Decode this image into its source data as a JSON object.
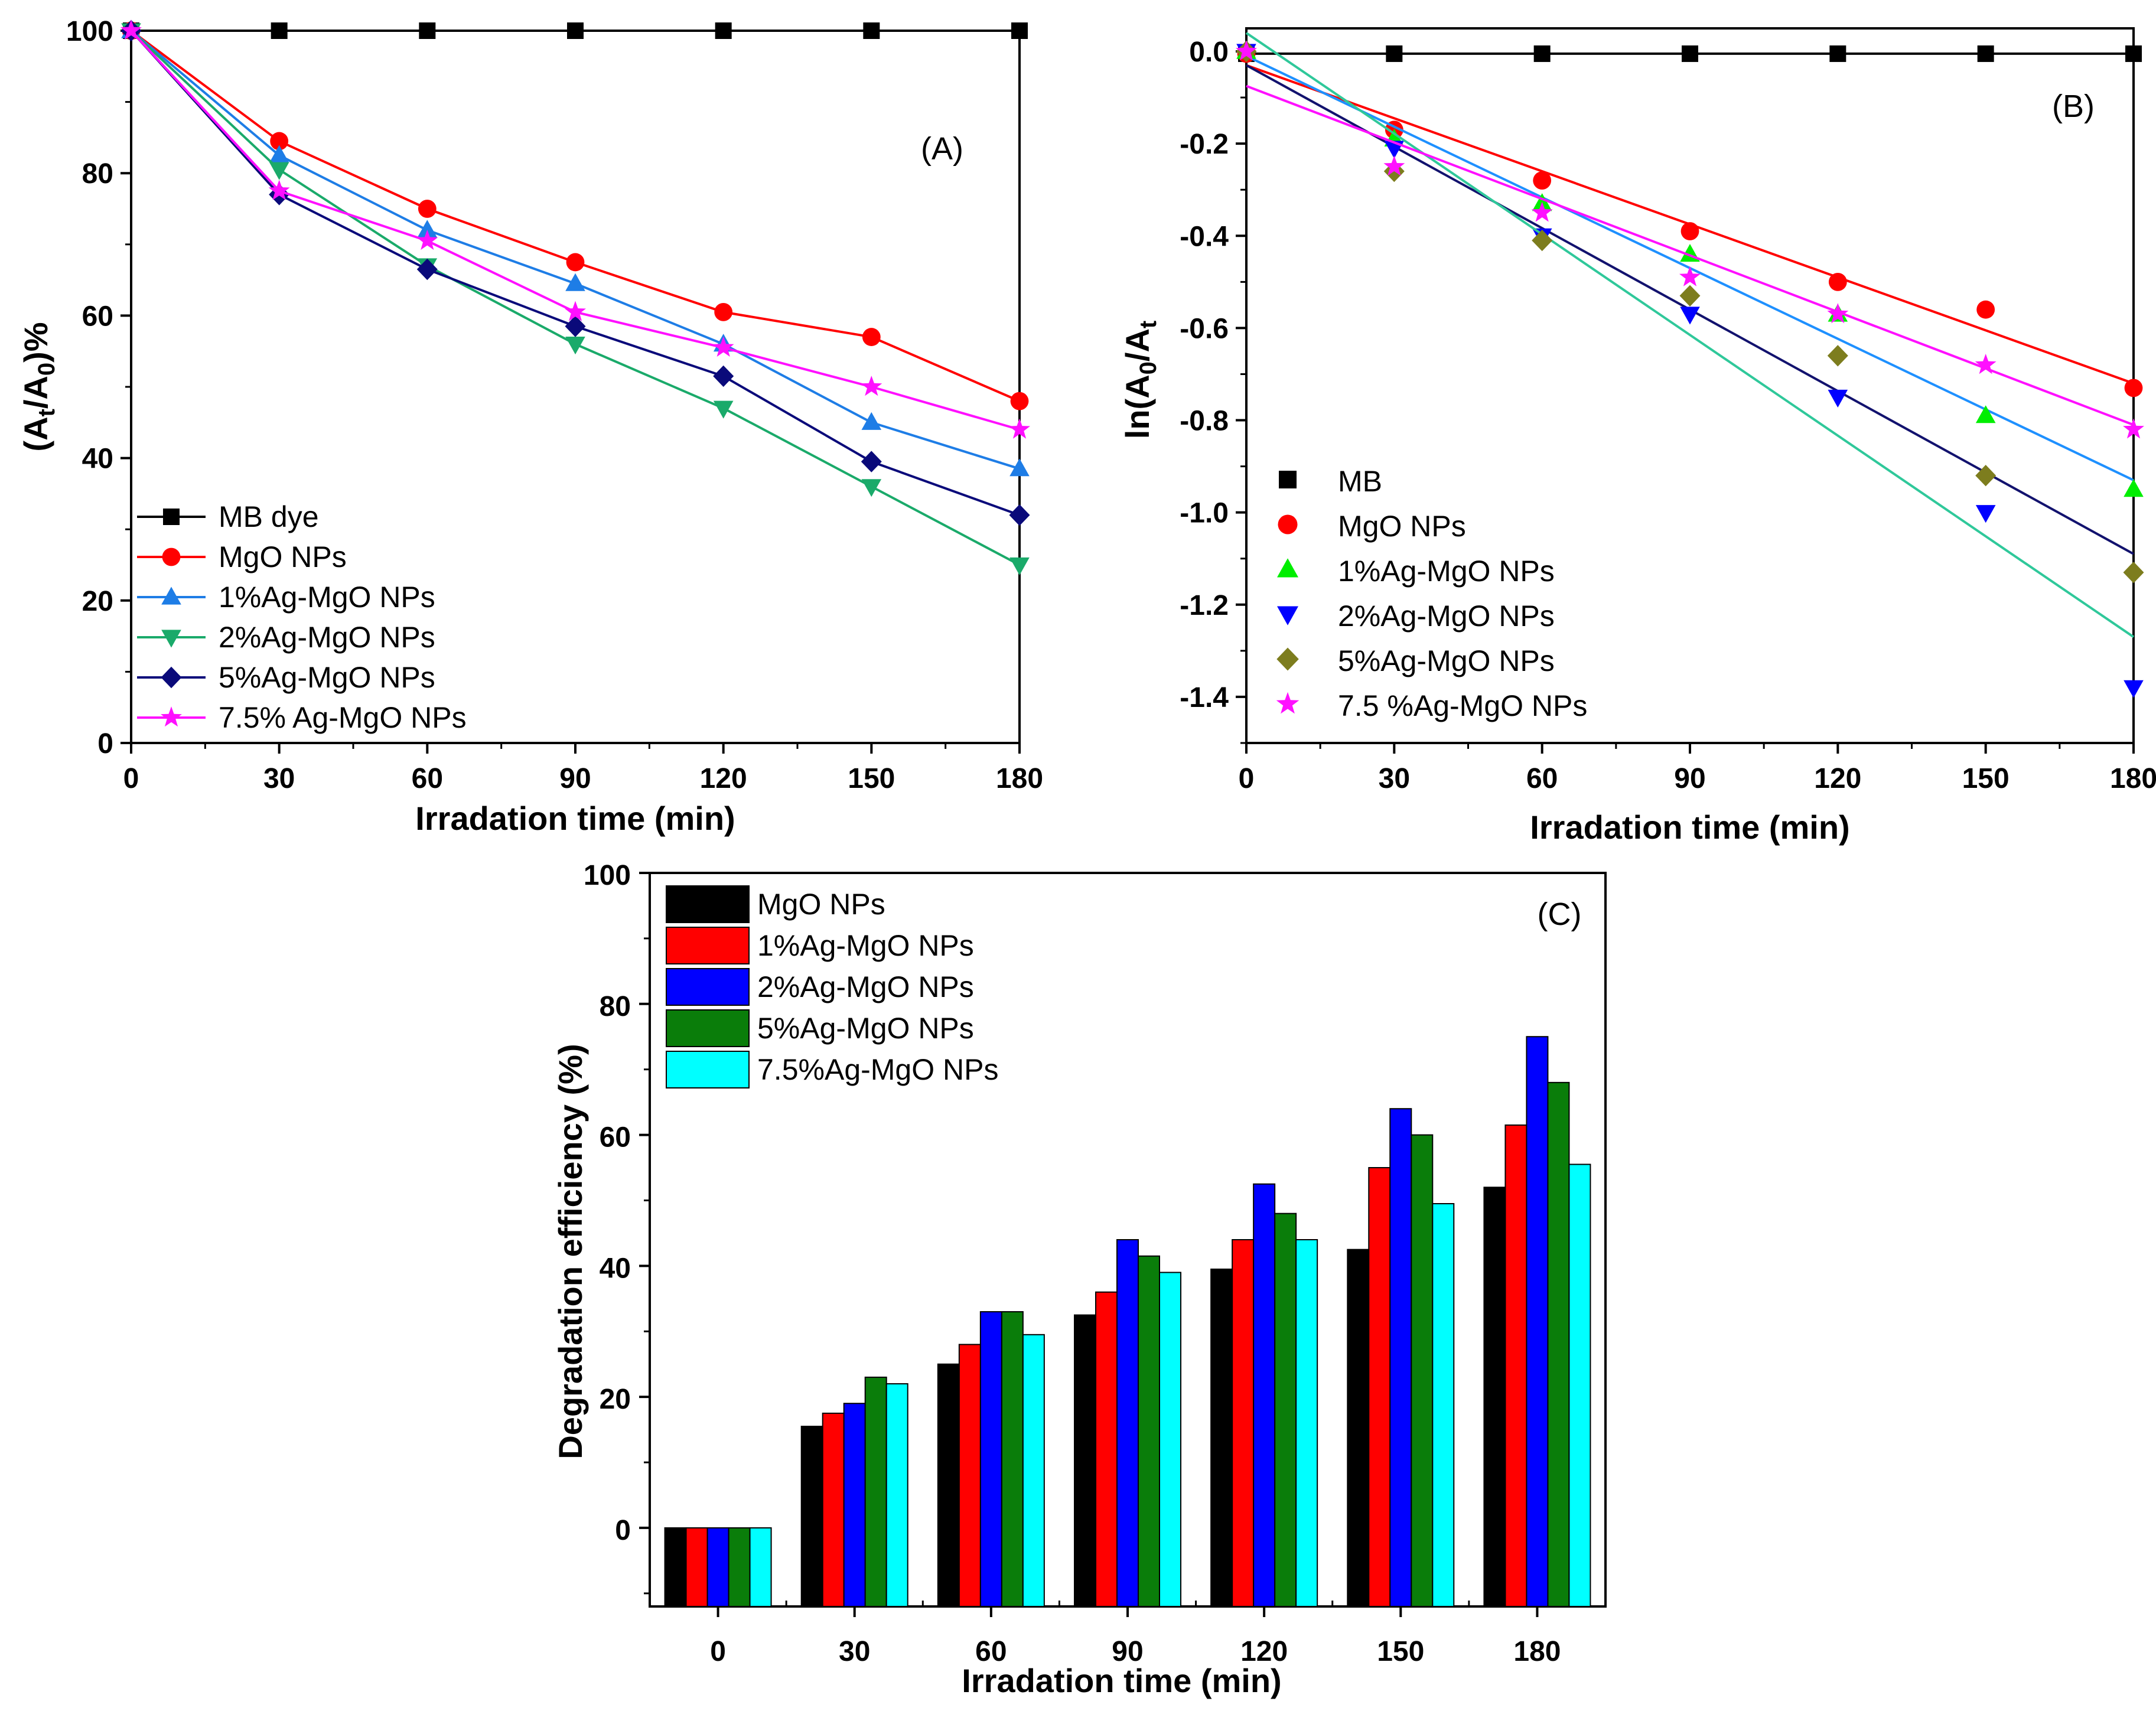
{
  "chart_data": [
    {
      "id": "A",
      "type": "line",
      "title": "(A)",
      "xlabel": "Irradation time (min)",
      "ylabel_parts": [
        "(A",
        "t",
        "/A",
        "0",
        ")%"
      ],
      "x": [
        0,
        30,
        60,
        90,
        120,
        150,
        180
      ],
      "xlim": [
        0,
        180
      ],
      "ylim": [
        0,
        100
      ],
      "xticks": [
        0,
        30,
        60,
        90,
        120,
        150,
        180
      ],
      "yticks": [
        0,
        20,
        40,
        60,
        80,
        100
      ],
      "legend_position": "bottom-left",
      "series": [
        {
          "name": "MB dye",
          "color": "#000000",
          "marker": "square",
          "values": [
            100,
            100,
            100,
            100,
            100,
            100,
            100
          ]
        },
        {
          "name": "MgO NPs",
          "color": "#ff0000",
          "marker": "circle",
          "values": [
            100,
            84.5,
            75,
            67.5,
            60.5,
            57,
            48
          ]
        },
        {
          "name": "1%Ag-MgO NPs",
          "color": "#1e7de6",
          "marker": "triangle-up",
          "values": [
            100,
            82.5,
            72,
            64.5,
            56,
            45,
            38.5
          ]
        },
        {
          "name": "2%Ag-MgO NPs",
          "color": "#1aaa6a",
          "marker": "triangle-down",
          "values": [
            100,
            80.5,
            67,
            56,
            47,
            36,
            25
          ]
        },
        {
          "name": "5%Ag-MgO NPs",
          "color": "#0a0a7a",
          "marker": "diamond",
          "values": [
            100,
            77,
            66.5,
            58.5,
            51.5,
            39.5,
            32
          ]
        },
        {
          "name": "7.5% Ag-MgO NPs",
          "color": "#ff10ff",
          "marker": "star",
          "values": [
            100,
            77.5,
            70.5,
            60.5,
            55.5,
            50,
            44
          ]
        }
      ]
    },
    {
      "id": "B",
      "type": "scatter",
      "title": "(B)",
      "xlabel": "Irradation time (min)",
      "ylabel_parts": [
        "ln(A",
        "0",
        "/A",
        "t"
      ],
      "x": [
        0,
        30,
        60,
        90,
        120,
        150,
        180
      ],
      "xlim": [
        0,
        180
      ],
      "ylim": [
        -1.5,
        0.05
      ],
      "xticks": [
        0,
        30,
        60,
        90,
        120,
        150,
        180
      ],
      "yticks": [
        0.0,
        -0.2,
        -0.4,
        -0.6,
        -0.8,
        -1.0,
        -1.2,
        -1.4
      ],
      "ytick_labels": [
        "0.0",
        "-0.2",
        "-0.4",
        "-0.6",
        "-0.8",
        "-1.0",
        "-1.2",
        "-1.4"
      ],
      "legend_position": "bottom-left",
      "series": [
        {
          "name": "MB",
          "color": "#000000",
          "marker": "square",
          "values": [
            -0.005,
            -0.005,
            -0.005,
            -0.005,
            -0.005,
            -0.005,
            -0.005
          ],
          "fit": [
            -0.005,
            -0.005
          ]
        },
        {
          "name": "MgO NPs",
          "color": "#ff0000",
          "marker": "circle",
          "values": [
            -0.005,
            -0.17,
            -0.28,
            -0.39,
            -0.5,
            -0.56,
            -0.73
          ],
          "fit": [
            -0.03,
            -0.72
          ]
        },
        {
          "name": "1%Ag-MgO NPs",
          "color": "#00ee00",
          "marker": "triangle-up",
          "values": [
            0.0,
            -0.19,
            -0.33,
            -0.44,
            -0.57,
            -0.79,
            -0.95
          ],
          "fit": [
            -0.01,
            -0.93
          ],
          "fit_color": "#1e90ff"
        },
        {
          "name": "2%Ag-MgO NPs",
          "color": "#0000ff",
          "marker": "triangle-down",
          "values": [
            0.0,
            -0.21,
            -0.4,
            -0.57,
            -0.75,
            -1.0,
            -1.38
          ],
          "fit": [
            -0.03,
            -1.09
          ],
          "fit_color": "#12126e"
        },
        {
          "name": "5%Ag-MgO NPs",
          "color": "#7d7d1e",
          "marker": "diamond",
          "values": [
            0.0,
            -0.26,
            -0.41,
            -0.53,
            -0.66,
            -0.92,
            -1.13
          ],
          "fit": [
            0.04,
            -1.27
          ],
          "fit_color": "#2fc89a"
        },
        {
          "name": "7.5 %Ag-MgO NPs",
          "color": "#ff10ff",
          "marker": "star",
          "values": [
            0.0,
            -0.25,
            -0.35,
            -0.49,
            -0.57,
            -0.68,
            -0.82
          ],
          "fit": [
            -0.075,
            -0.81
          ]
        }
      ]
    },
    {
      "id": "C",
      "type": "bar",
      "title": "(C)",
      "xlabel": "Irradation time (min)",
      "ylabel": "Degradation efficiency (%)",
      "categories": [
        "0",
        "30",
        "60",
        "90",
        "120",
        "150",
        "180"
      ],
      "ylim": [
        -12,
        100
      ],
      "yticks": [
        0,
        20,
        40,
        60,
        80,
        100
      ],
      "legend_position": "top-left",
      "series": [
        {
          "name": "MgO NPs",
          "color": "#000000",
          "values": [
            0,
            15.5,
            25,
            32.5,
            39.5,
            42.5,
            52
          ]
        },
        {
          "name": "1%Ag-MgO NPs",
          "color": "#ff0000",
          "values": [
            0,
            17.5,
            28,
            36,
            44,
            55,
            61.5
          ]
        },
        {
          "name": "2%Ag-MgO NPs",
          "color": "#0000ff",
          "values": [
            0,
            19,
            33,
            44,
            52.5,
            64,
            75
          ]
        },
        {
          "name": "5%Ag-MgO NPs",
          "color": "#0a7d0a",
          "values": [
            0,
            23,
            33,
            41.5,
            48,
            60,
            68
          ]
        },
        {
          "name": "7.5%Ag-MgO NPs",
          "color": "#00ffff",
          "values": [
            0,
            22,
            29.5,
            39,
            44,
            49.5,
            55.5
          ]
        }
      ]
    }
  ]
}
